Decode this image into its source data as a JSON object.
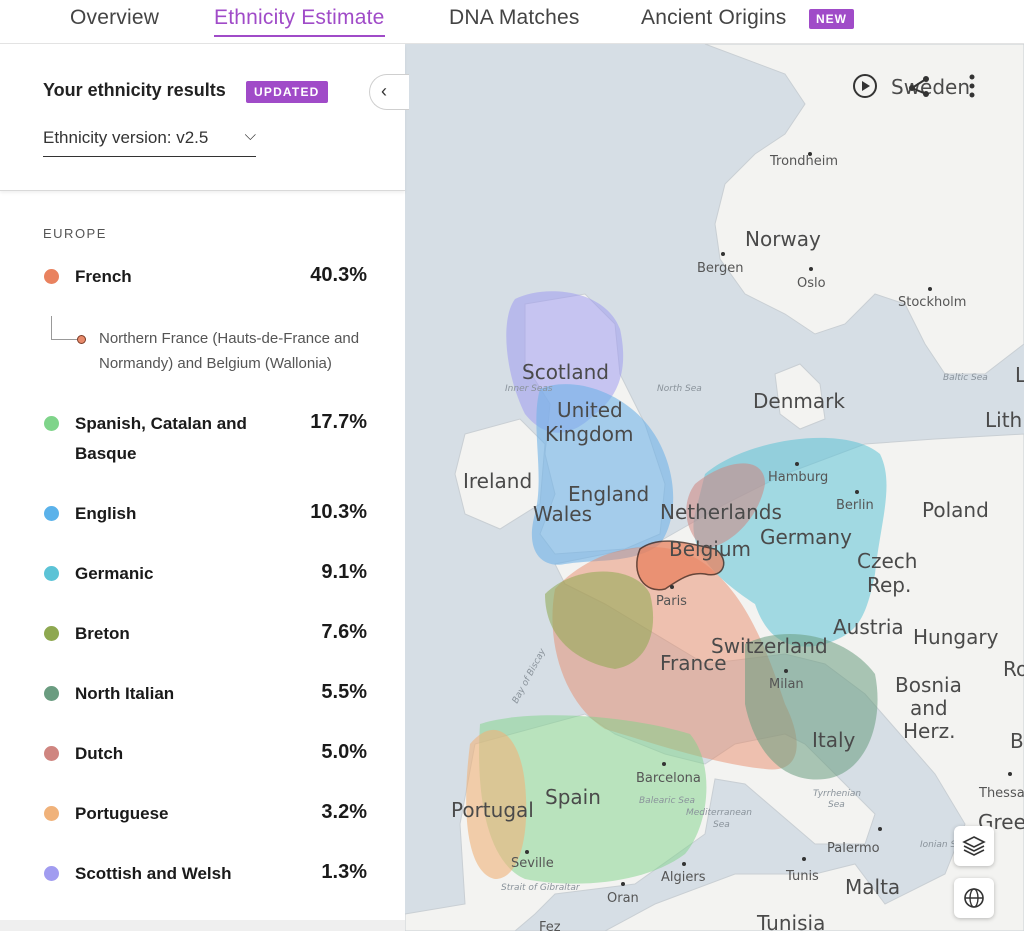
{
  "tabs": [
    {
      "label": "Overview"
    },
    {
      "label": "Ethnicity Estimate"
    },
    {
      "label": "DNA Matches"
    },
    {
      "label": "Ancient Origins"
    }
  ],
  "tabs_new_badge": "NEW",
  "panel": {
    "title": "Your ethnicity results",
    "updated_badge": "UPDATED",
    "version_label": "Ethnicity version: v2.5",
    "region": "EUROPE",
    "subregion": "Northern France (Hauts-de-France and Normandy) and Belgium (Wallonia)",
    "ethnicities": [
      {
        "name": "French",
        "percent": "40.3%",
        "color": "#e9825f"
      },
      {
        "name": "Spanish, Catalan and Basque",
        "percent": "17.7%",
        "color": "#7fd48a"
      },
      {
        "name": "English",
        "percent": "10.3%",
        "color": "#5bb2ea"
      },
      {
        "name": "Germanic",
        "percent": "9.1%",
        "color": "#5cc3d6"
      },
      {
        "name": "Breton",
        "percent": "7.6%",
        "color": "#8ea850"
      },
      {
        "name": "North Italian",
        "percent": "5.5%",
        "color": "#6a9c80"
      },
      {
        "name": "Dutch",
        "percent": "5.0%",
        "color": "#cf8580"
      },
      {
        "name": "Portuguese",
        "percent": "3.2%",
        "color": "#f0b27a"
      },
      {
        "name": "Scottish and Welsh",
        "percent": "1.3%",
        "color": "#a19cf0"
      }
    ]
  },
  "map": {
    "countries": {
      "sweden": "Sweden",
      "norway": "Norway",
      "denmark": "Denmark",
      "scotland": "Scotland",
      "uk1": "United",
      "uk2": "Kingdom",
      "ireland": "Ireland",
      "england": "England",
      "wales": "Wales",
      "netherlands": "Netherlands",
      "belgium": "Belgium",
      "germany": "Germany",
      "poland": "Poland",
      "czech1": "Czech",
      "czech2": "Rep.",
      "austria": "Austria",
      "hungary": "Hungary",
      "switzerland": "Switzerland",
      "france": "France",
      "bosnia1": "Bosnia",
      "bosnia2": "and",
      "bosnia3": "Herz.",
      "italy": "Italy",
      "spain": "Spain",
      "portugal": "Portugal",
      "malta": "Malta",
      "tunisia": "Tunisia",
      "lithu": "Lith",
      "gree": "Gree",
      "l_edge": "L",
      "ro_edge": "Ro",
      "b_edge": "B"
    },
    "cities": {
      "trondheim": "Trondheim",
      "bergen": "Bergen",
      "oslo": "Oslo",
      "stockholm": "Stockholm",
      "hamburg": "Hamburg",
      "berlin": "Berlin",
      "paris": "Paris",
      "milan": "Milan",
      "barcelona": "Barcelona",
      "seville": "Seville",
      "algiers": "Algiers",
      "oran": "Oran",
      "tunis": "Tunis",
      "palermo": "Palermo",
      "thessal": "Thessal",
      "fez": "Fez"
    },
    "seas": {
      "inner_seas": "Inner Seas",
      "north_sea": "North Sea",
      "baltic": "Baltic Sea",
      "biscay": "Bay of Biscay",
      "balearic": "Balearic Sea",
      "med1": "Mediterranean",
      "med2": "Sea",
      "tyrr1": "Tyrrhenian",
      "tyrr2": "Sea",
      "ionian": "Ionian Se",
      "gibraltar": "Strait of Gibraltar"
    }
  }
}
